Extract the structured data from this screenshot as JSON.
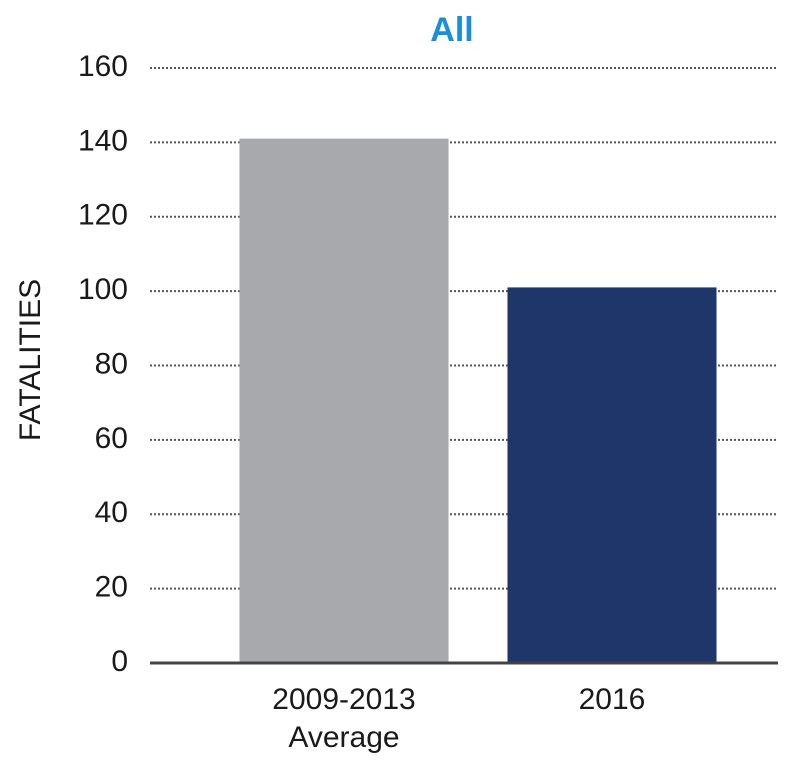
{
  "chart_data": {
    "type": "bar",
    "title": "All",
    "y_label": "FATALITIES",
    "categories": [
      "2009-2013\nAverage",
      "2016"
    ],
    "values": [
      141,
      101
    ],
    "colors": [
      "#a7a9ac",
      "#1f366b"
    ],
    "ylim": [
      0,
      160
    ],
    "yticks": [
      0,
      20,
      40,
      60,
      80,
      100,
      120,
      140,
      160
    ],
    "grid": true
  }
}
